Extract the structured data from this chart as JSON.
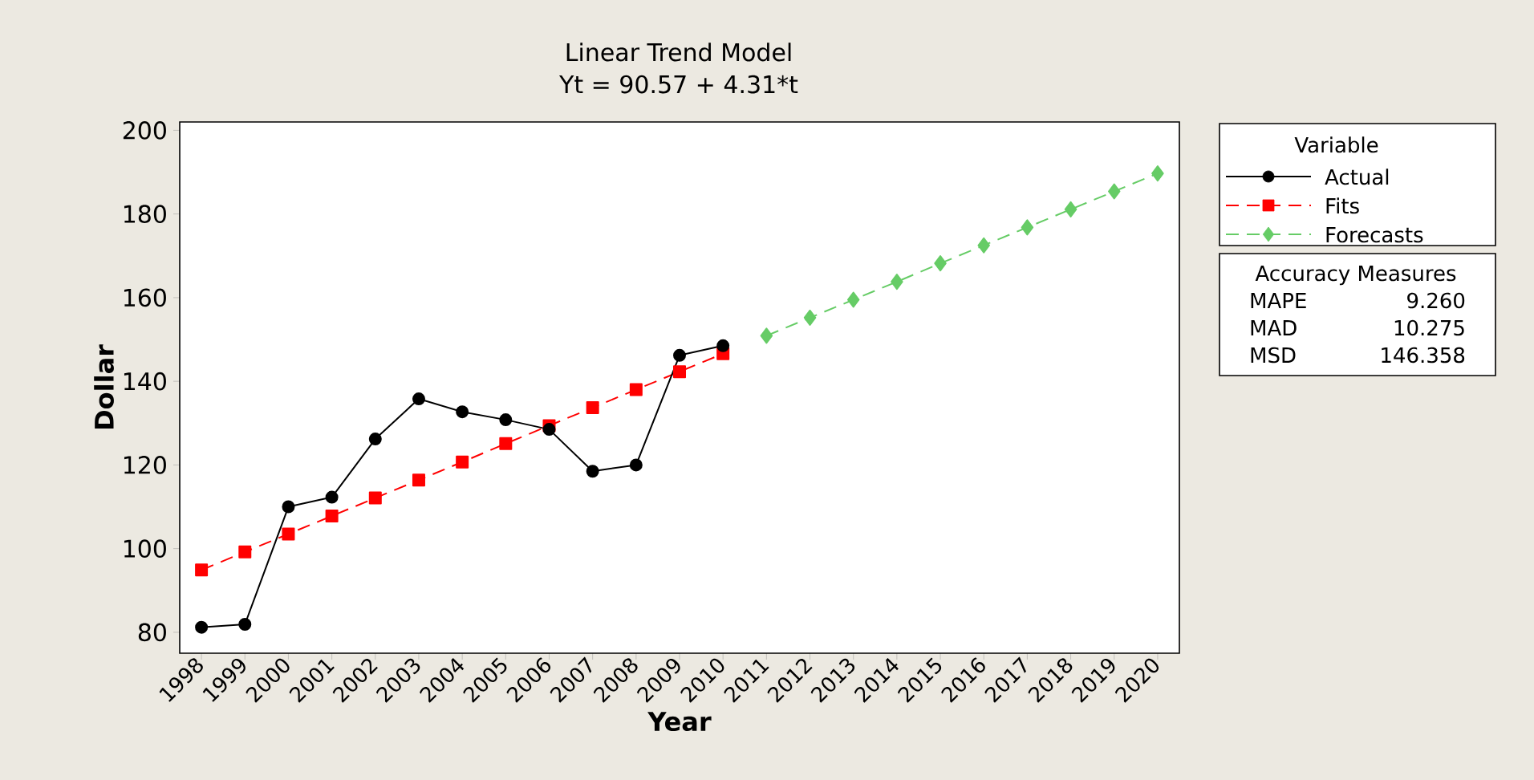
{
  "chart_data": {
    "type": "line",
    "title": "Linear Trend Model",
    "subtitle": "Yt = 90.57 + 4.31*t",
    "xlabel": "Year",
    "ylabel": "Dollar",
    "categories": [
      "1998",
      "1999",
      "2000",
      "2001",
      "2002",
      "2003",
      "2004",
      "2005",
      "2006",
      "2007",
      "2008",
      "2009",
      "2010",
      "2011",
      "2012",
      "2013",
      "2014",
      "2015",
      "2016",
      "2017",
      "2018",
      "2019",
      "2020"
    ],
    "series": [
      {
        "name": "Actual",
        "color": "#000000",
        "marker": "circle",
        "line_style": "solid",
        "values": [
          81.2,
          81.9,
          110.0,
          112.3,
          126.2,
          135.8,
          132.7,
          130.8,
          128.5,
          118.5,
          120.0,
          146.2,
          148.5,
          null,
          null,
          null,
          null,
          null,
          null,
          null,
          null,
          null,
          null
        ]
      },
      {
        "name": "Fits",
        "color": "#ff0000",
        "marker": "square",
        "line_style": "dashed",
        "values": [
          94.9,
          99.2,
          103.5,
          107.8,
          112.1,
          116.4,
          120.7,
          125.1,
          129.4,
          133.7,
          138.0,
          142.3,
          146.6,
          null,
          null,
          null,
          null,
          null,
          null,
          null,
          null,
          null,
          null
        ]
      },
      {
        "name": "Forecasts",
        "color": "#66cc66",
        "marker": "diamond",
        "line_style": "dashed",
        "values": [
          null,
          null,
          null,
          null,
          null,
          null,
          null,
          null,
          null,
          null,
          null,
          null,
          null,
          150.9,
          155.2,
          159.5,
          163.8,
          168.2,
          172.5,
          176.8,
          181.1,
          185.4,
          189.7
        ]
      }
    ],
    "ylim": [
      75,
      202
    ],
    "yticks": [
      80,
      100,
      120,
      140,
      160,
      180,
      200
    ],
    "legend": "right",
    "legend_title": "Variable",
    "annotations": [
      "Accuracy Measures",
      "MAPE",
      "9.260",
      "MAD",
      "10.275",
      "MSD",
      "146.358"
    ]
  }
}
